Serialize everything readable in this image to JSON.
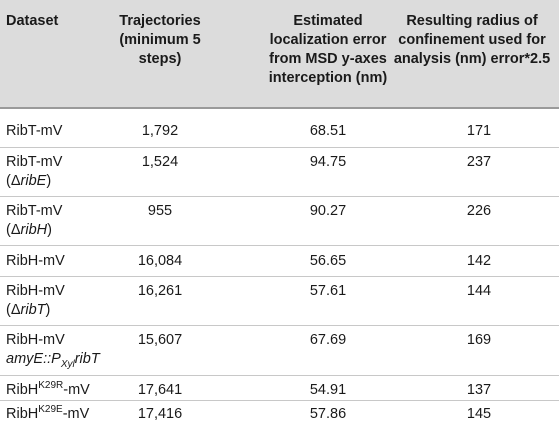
{
  "header": {
    "dataset": "Dataset",
    "trajectories": [
      "Trajectories",
      "(minimum 5",
      "steps)"
    ],
    "estimated": [
      "Estimated",
      "localization error",
      "from MSD y-axes",
      "interception (nm)"
    ],
    "radius": [
      "Resulting radius of",
      "confinement used for",
      "analysis (nm) error*2.5"
    ]
  },
  "rows": [
    {
      "name": "RibT-mV",
      "trajectories": "1,792",
      "error": "68.51",
      "radius": "171"
    },
    {
      "name": "RibT-mV",
      "name_note": {
        "open": "(",
        "delta": "Δ",
        "gene": "ribE",
        "close": ")"
      },
      "trajectories": "1,524",
      "error": "94.75",
      "radius": "237"
    },
    {
      "name": "RibT-mV",
      "name_note": {
        "open": "(",
        "delta": "Δ",
        "gene": "ribH",
        "close": ")"
      },
      "trajectories": "955",
      "error": "90.27",
      "radius": "226"
    },
    {
      "name": "RibH-mV",
      "trajectories": "16,084",
      "error": "56.65",
      "radius": "142"
    },
    {
      "name": "RibH-mV",
      "name_note": {
        "open": "(",
        "delta": "Δ",
        "gene": "ribT",
        "close": ")"
      },
      "trajectories": "16,261",
      "error": "57.61",
      "radius": "144"
    },
    {
      "name": "RibH-mV",
      "construct": {
        "locus": "amyE",
        "sep": "::",
        "promoter": "P",
        "promoter_sub": "Xyl",
        "gene": "ribT"
      },
      "trajectories": "15,607",
      "error": "67.69",
      "radius": "169"
    },
    {
      "name_base": "RibH",
      "name_sup": "K29R",
      "name_tail": "-mV",
      "trajectories": "17,641",
      "error": "54.91",
      "radius": "137"
    },
    {
      "name_base": "RibH",
      "name_sup": "K29E",
      "name_tail": "-mV",
      "trajectories": "17,416",
      "error": "57.86",
      "radius": "145"
    }
  ]
}
